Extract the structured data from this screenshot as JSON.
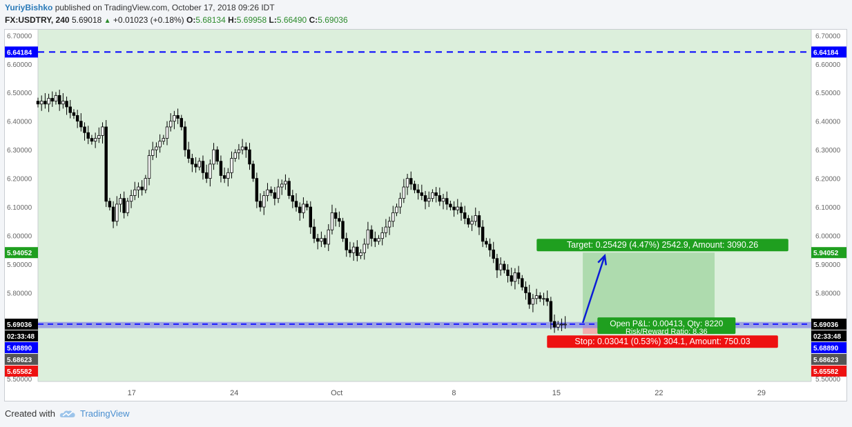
{
  "header": {
    "author": "YuriyBishko",
    "published_text": "published on TradingView.com, October 17, 2018 09:26 IDT",
    "symbol": "FX:USDTRY, 240",
    "last": "5.69018",
    "up_arrow": "▲",
    "change": "+0.01023 (+0.18%)",
    "o_label": "O:",
    "o_value": "5.68134",
    "h_label": "H:",
    "h_value": "5.69958",
    "l_label": "L:",
    "l_value": "5.66490",
    "c_label": "C:",
    "c_value": "5.69036"
  },
  "footer": {
    "created_with": "Created with",
    "brand": "TradingView"
  },
  "colors": {
    "plot_bg": "#dcefdc",
    "candle": "#000000",
    "resistance_line": "#0000ff",
    "price_line": "#1a1aff",
    "target_zone": "#a8d8a8",
    "stop_zone": "#f3a7a7",
    "target_label": "#1f9f1f",
    "stop_label": "#ee1111",
    "blue_band": "#8a8ae6"
  },
  "chart_data": {
    "type": "candlestick",
    "symbol": "FX:USDTRY",
    "timeframe": "240",
    "ylim": [
      5.49,
      6.72
    ],
    "y_ticks": [
      5.5,
      5.6,
      5.7,
      5.8,
      5.9,
      6.0,
      6.1,
      6.2,
      6.3,
      6.4,
      6.5,
      6.6,
      6.7
    ],
    "y_tick_labels": [
      "5.50000",
      "5.60000",
      "5.70000",
      "5.80000",
      "5.90000",
      "6.00000",
      "6.10000",
      "6.20000",
      "6.30000",
      "6.40000",
      "6.50000",
      "6.60000",
      "6.70000"
    ],
    "x_range": [
      10.2,
      31.0
    ],
    "x_ticks": [
      {
        "label": "17",
        "day": 17
      },
      {
        "label": "24",
        "day": 24
      },
      {
        "label": "Oct",
        "day": 31
      },
      {
        "label": "8",
        "day": 39
      },
      {
        "label": "15",
        "day": 46
      },
      {
        "label": "22",
        "day": 53
      },
      {
        "label": "29",
        "day": 60
      }
    ],
    "x_day_range": [
      10.6,
      63.4
    ],
    "closes": [
      6.46,
      6.47,
      6.46,
      6.48,
      6.47,
      6.49,
      6.46,
      6.47,
      6.45,
      6.43,
      6.42,
      6.4,
      6.38,
      6.36,
      6.34,
      6.33,
      6.34,
      6.35,
      6.38,
      6.12,
      6.1,
      6.05,
      6.11,
      6.13,
      6.08,
      6.12,
      6.14,
      6.16,
      6.17,
      6.16,
      6.2,
      6.28,
      6.3,
      6.31,
      6.33,
      6.34,
      6.38,
      6.4,
      6.42,
      6.41,
      6.38,
      6.3,
      6.27,
      6.25,
      6.24,
      6.26,
      6.22,
      6.2,
      6.25,
      6.3,
      6.26,
      6.21,
      6.2,
      6.22,
      6.27,
      6.29,
      6.3,
      6.31,
      6.3,
      6.25,
      6.2,
      6.12,
      6.1,
      6.14,
      6.16,
      6.15,
      6.13,
      6.17,
      6.18,
      6.19,
      6.14,
      6.12,
      6.1,
      6.08,
      6.11,
      6.1,
      6.03,
      5.99,
      5.98,
      5.99,
      5.97,
      6.02,
      6.08,
      6.06,
      6.05,
      5.99,
      5.95,
      5.94,
      5.96,
      5.93,
      5.94,
      5.97,
      6.02,
      5.99,
      5.98,
      5.99,
      6.01,
      6.03,
      6.05,
      6.08,
      6.1,
      6.13,
      6.17,
      6.2,
      6.18,
      6.16,
      6.15,
      6.14,
      6.12,
      6.13,
      6.15,
      6.14,
      6.12,
      6.13,
      6.11,
      6.1,
      6.09,
      6.1,
      6.08,
      6.06,
      6.04,
      6.05,
      6.07,
      6.03,
      5.98,
      5.97,
      5.95,
      5.92,
      5.88,
      5.9,
      5.88,
      5.86,
      5.84,
      5.87,
      5.85,
      5.82,
      5.8,
      5.76,
      5.78,
      5.79,
      5.78,
      5.78,
      5.77,
      5.7,
      5.68,
      5.69,
      5.69,
      5.69036
    ],
    "levels": [
      {
        "name": "resistance",
        "value": 6.64184,
        "label": "6.64184",
        "color": "#0000ff",
        "style": "dashed"
      },
      {
        "name": "last-price",
        "value": 5.69036,
        "label": "5.69036",
        "color": "#1a1aff",
        "style": "dashed"
      },
      {
        "name": "stop-price",
        "value": 5.65582,
        "label": "5.65582",
        "color": "#ee1111"
      },
      {
        "name": "bid",
        "value": 5.6889,
        "label": "5.68890",
        "color": "#0000ff"
      },
      {
        "name": "low",
        "value": 5.68623,
        "label": "5.68623",
        "color": "#555555"
      },
      {
        "name": "target-price",
        "value": 5.94052,
        "label": "5.94052",
        "color": "#1f9f1f"
      }
    ],
    "countdown": "02:33:48",
    "position": {
      "entry": 5.68623,
      "target": 5.94052,
      "stop": 5.65582,
      "start_day": 47.8,
      "end_day": 56.8,
      "target_text": "Target: 0.25429 (4.47%) 2542.9, Amount: 3090.26",
      "stop_text": "Stop: 0.03041 (0.53%) 304.1, Amount: 750.03",
      "open_pnl_text": "Open P&L: 0.00413, Qty: 8220",
      "risk_reward_text": "Risk/Reward Ratio: 8.36"
    },
    "arrow": {
      "from_day": 47.8,
      "from_price": 5.695,
      "to_day": 49.3,
      "to_price": 5.93
    },
    "grid": false
  }
}
